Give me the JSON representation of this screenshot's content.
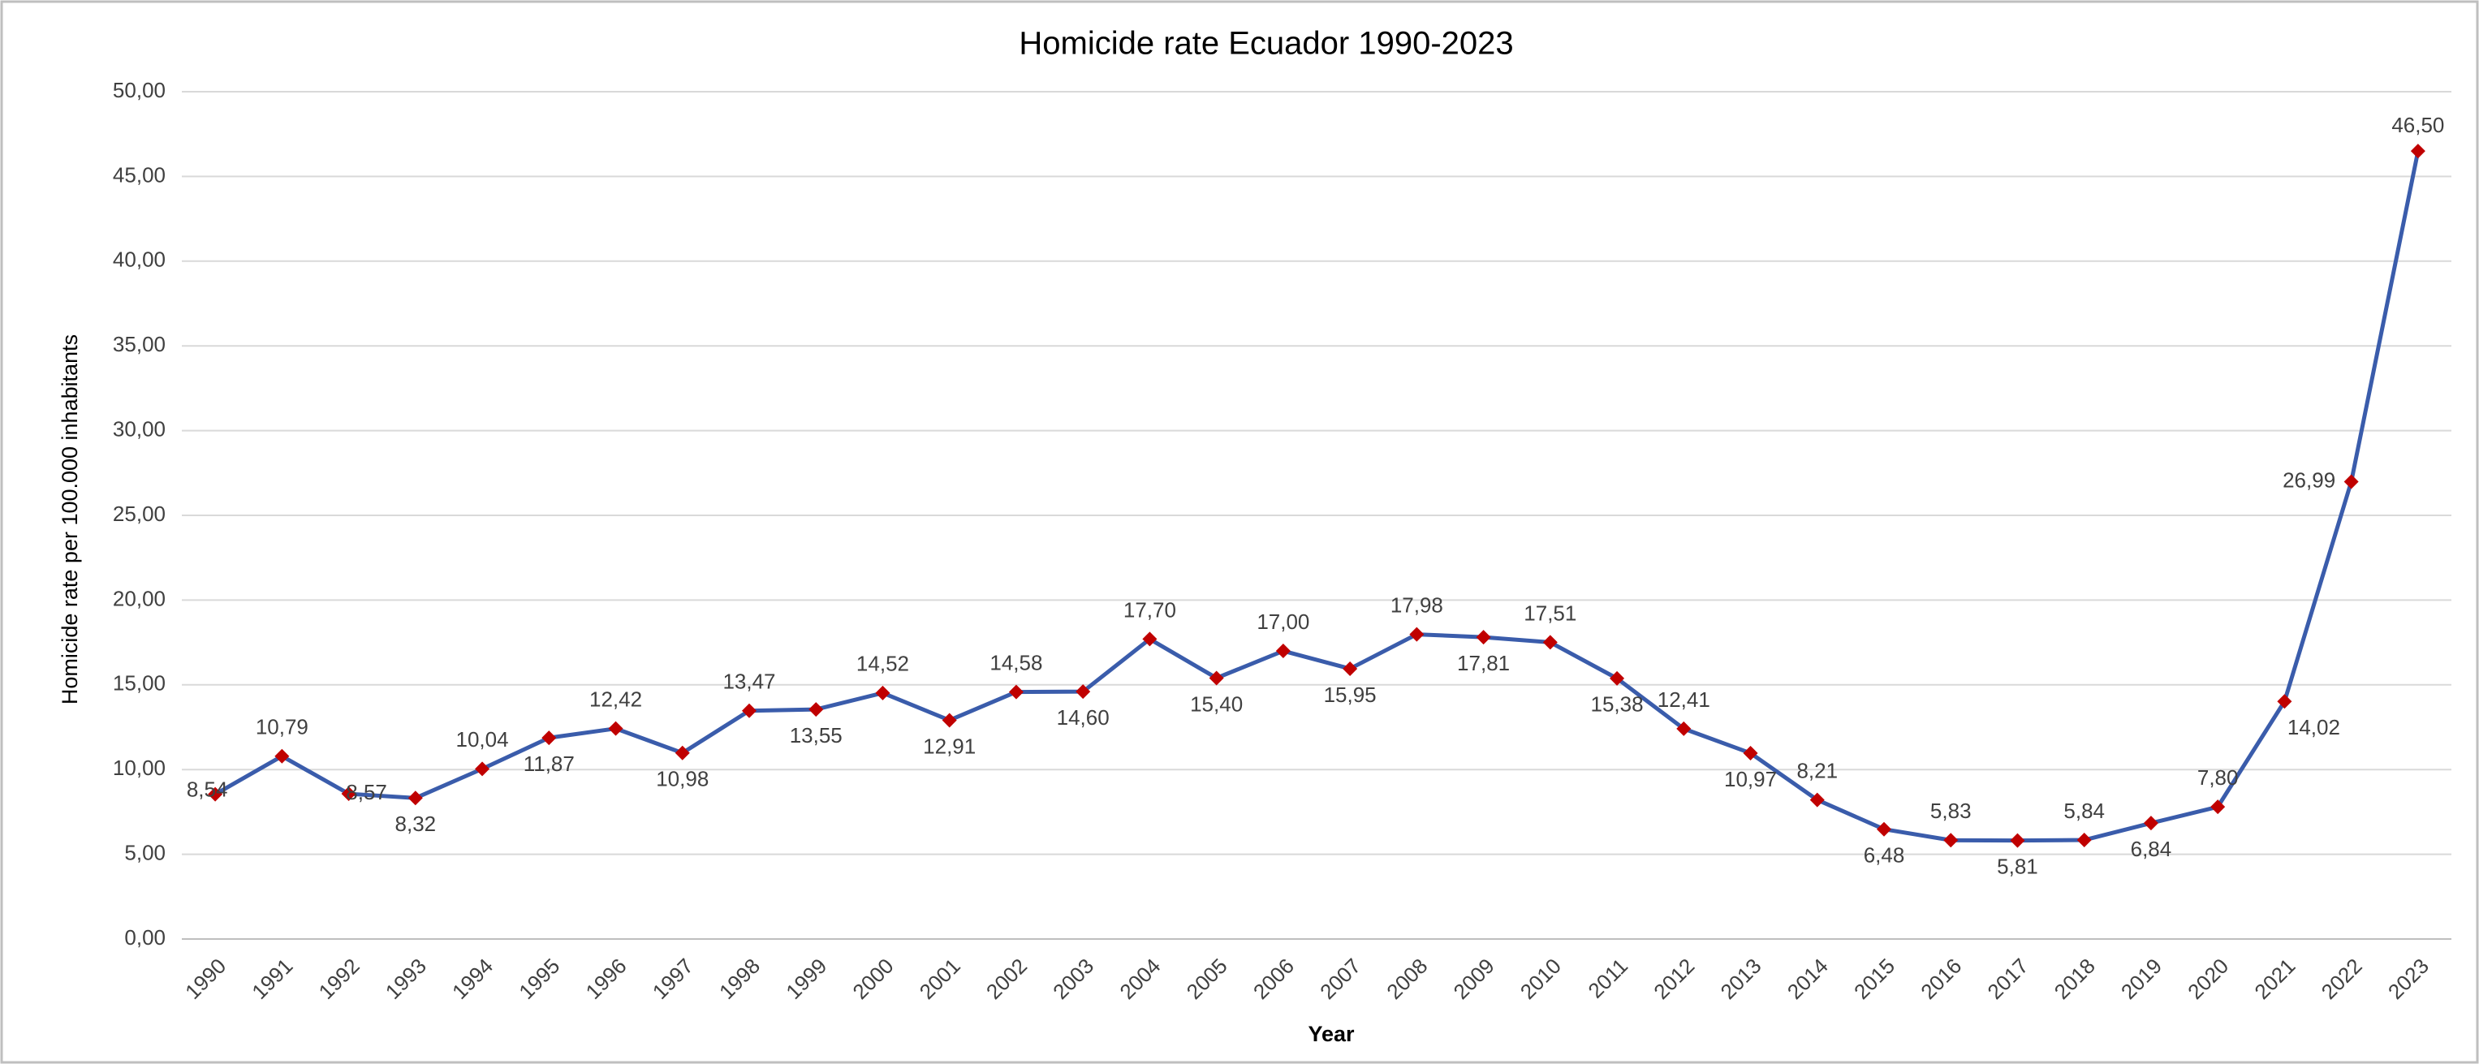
{
  "chart_data": {
    "type": "line",
    "title": "Homicide rate Ecuador 1990-2023",
    "xlabel": "Year",
    "ylabel": "Homicide rate per 100.000 inhabitants",
    "categories": [
      "1990",
      "1991",
      "1992",
      "1993",
      "1994",
      "1995",
      "1996",
      "1997",
      "1998",
      "1999",
      "2000",
      "2001",
      "2002",
      "2003",
      "2004",
      "2005",
      "2006",
      "2007",
      "2008",
      "2009",
      "2010",
      "2011",
      "2012",
      "2013",
      "2014",
      "2015",
      "2016",
      "2017",
      "2018",
      "2019",
      "2020",
      "2021",
      "2022",
      "2023"
    ],
    "values": [
      8.54,
      10.79,
      8.57,
      8.32,
      10.04,
      11.87,
      12.42,
      10.98,
      13.47,
      13.55,
      14.52,
      12.91,
      14.58,
      14.6,
      17.7,
      15.4,
      17.0,
      15.95,
      17.98,
      17.81,
      17.51,
      15.38,
      12.41,
      10.97,
      8.21,
      6.48,
      5.83,
      5.81,
      5.84,
      6.84,
      7.8,
      14.02,
      26.99,
      46.5
    ],
    "value_labels": [
      "8,54",
      "10,79",
      "8,57",
      "8,32",
      "10,04",
      "11,87",
      "12,42",
      "10,98",
      "13,47",
      "13,55",
      "14,52",
      "12,91",
      "14,58",
      "14,60",
      "17,70",
      "15,40",
      "17,00",
      "15,95",
      "17,98",
      "17,81",
      "17,51",
      "15,38",
      "12,41",
      "10,97",
      "8,21",
      "6,48",
      "5,83",
      "5,81",
      "5,84",
      "6,84",
      "7,80",
      "14,02",
      "26,99",
      "46,50"
    ],
    "color": "#3a5cab",
    "marker_color": "#c00000",
    "ylim": [
      0,
      50
    ],
    "yticks": [
      {
        "value": 0,
        "label": "0,00"
      },
      {
        "value": 5,
        "label": "5,00"
      },
      {
        "value": 10,
        "label": "10,00"
      },
      {
        "value": 15,
        "label": "15,00"
      },
      {
        "value": 20,
        "label": "20,00"
      },
      {
        "value": 25,
        "label": "25,00"
      },
      {
        "value": 30,
        "label": "30,00"
      },
      {
        "value": 35,
        "label": "35,00"
      },
      {
        "value": 40,
        "label": "40,00"
      },
      {
        "value": 45,
        "label": "45,00"
      },
      {
        "value": 50,
        "label": "50,00"
      }
    ],
    "grid": true
  }
}
